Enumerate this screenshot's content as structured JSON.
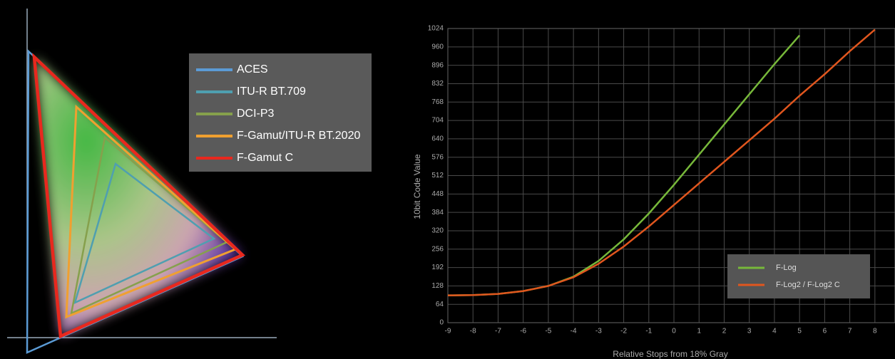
{
  "chart_data": [
    {
      "type": "gamut",
      "series": [
        {
          "name": "ACES",
          "color": "#5b9bd5"
        },
        {
          "name": "ITU-R BT.709",
          "color": "#4f9fb0"
        },
        {
          "name": "DCI-P3",
          "color": "#86a04c"
        },
        {
          "name": "F-Gamut/ITU-R BT.2020",
          "color": "#f0a030"
        },
        {
          "name": "F-Gamut C",
          "color": "#e8281e"
        }
      ]
    },
    {
      "type": "line",
      "x_label": "Relative Stops from 18% Gray",
      "y_label": "10bit Code Value",
      "x": [
        -9,
        -8,
        -7,
        -6,
        -5,
        -4,
        -3,
        -2,
        -1,
        0,
        1,
        2,
        3,
        4,
        5,
        6,
        7,
        8
      ],
      "xlim": [
        -9,
        8.8
      ],
      "xticks": [
        -9,
        -8,
        -7,
        -6,
        -5,
        -4,
        -3,
        -2,
        -1,
        0,
        1,
        2,
        3,
        4,
        5,
        6,
        7,
        8
      ],
      "ylim": [
        0,
        1024
      ],
      "yticks": [
        0,
        64,
        128,
        192,
        256,
        320,
        384,
        448,
        512,
        576,
        640,
        704,
        768,
        832,
        896,
        960,
        1024
      ],
      "grid": true,
      "legend": "lower right",
      "series": [
        {
          "name": "F-Log",
          "color": "#77b83a",
          "values": [
            95,
            96,
            100,
            110,
            128,
            160,
            215,
            290,
            380,
            480,
            585,
            690,
            795,
            900,
            1000,
            null,
            null,
            null
          ]
        },
        {
          "name": "F-Log2 / F-Log2 C",
          "color": "#e0561e",
          "values": [
            95,
            96,
            100,
            110,
            128,
            158,
            205,
            265,
            335,
            410,
            485,
            560,
            635,
            710,
            790,
            865,
            945,
            1020
          ]
        }
      ]
    }
  ]
}
